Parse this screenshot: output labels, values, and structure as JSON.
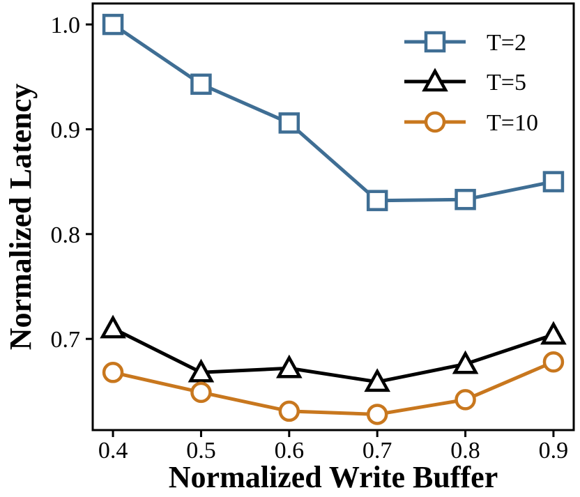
{
  "chart_data": {
    "type": "line",
    "title": "",
    "xlabel": "Normalized Write Buffer",
    "ylabel": "Normalized Latency",
    "x": [
      0.4,
      0.5,
      0.6,
      0.7,
      0.8,
      0.9
    ],
    "x_tick_labels": [
      "0.4",
      "0.5",
      "0.6",
      "0.7",
      "0.8",
      "0.9"
    ],
    "y_ticks": [
      0.7,
      0.8,
      0.9,
      1.0
    ],
    "y_tick_labels": [
      "0.7",
      "0.8",
      "0.9",
      "1.0"
    ],
    "xlim": [
      0.377,
      0.923
    ],
    "ylim": [
      0.613,
      1.02
    ],
    "grid": false,
    "legend_position": "top-right",
    "series": [
      {
        "name": "T=2",
        "marker": "square",
        "color": "#3f6e94",
        "values": [
          1.0,
          0.943,
          0.906,
          0.832,
          0.833,
          0.85
        ]
      },
      {
        "name": "T=5",
        "marker": "triangle",
        "color": "#000000",
        "values": [
          0.71,
          0.668,
          0.672,
          0.659,
          0.676,
          0.704
        ]
      },
      {
        "name": "T=10",
        "marker": "circle",
        "color": "#c8771e",
        "values": [
          0.668,
          0.649,
          0.631,
          0.628,
          0.642,
          0.678
        ]
      }
    ]
  }
}
